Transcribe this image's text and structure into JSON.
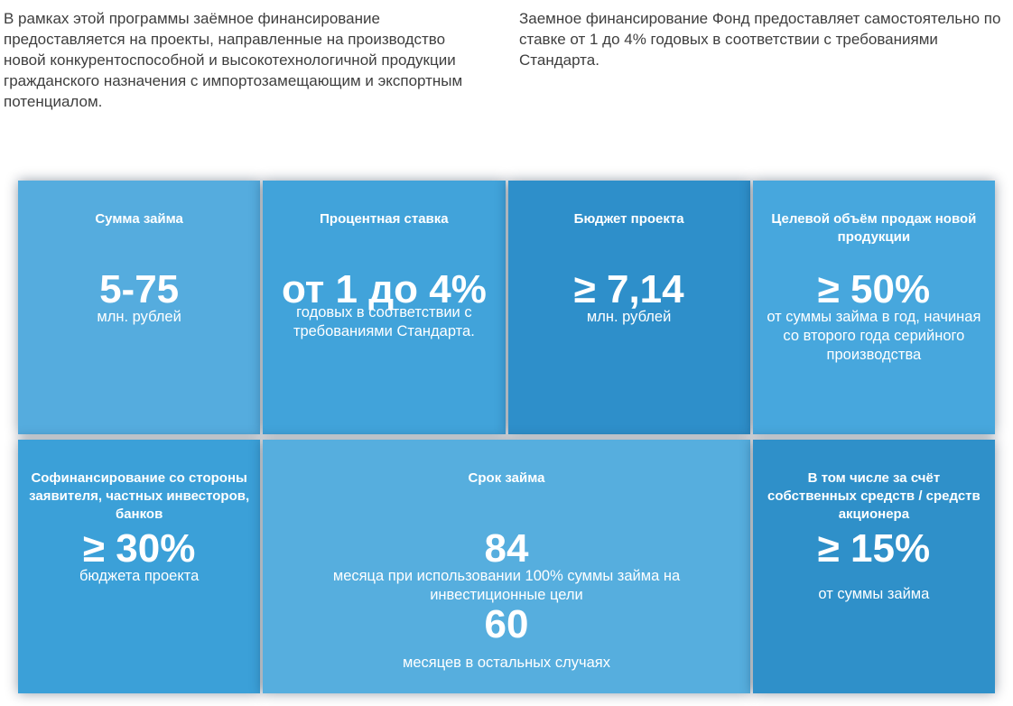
{
  "intro": {
    "left": "В рамках этой программы заёмное финансирование предоставляется на проекты, направленные на производство новой конкурентоспособной и высокотехнологичной продукции гражданского назначения с импортозамещающим и экспортным потенциалом.",
    "right": "Заемное финансирование Фонд предоставляет самостоятельно по ставке от 1 до 4% годовых в соответствии с требованиями Стандарта."
  },
  "tiles": [
    {
      "title": "Сумма займа",
      "value": "5-75",
      "sub": "млн. рублей",
      "color": "#55acde"
    },
    {
      "title": "Процентная ставка",
      "value": "от 1 до 4%",
      "sub": "годовых в соответствии с требованиями Стандарта.",
      "color": "#41a3da"
    },
    {
      "title": "Бюджет проекта",
      "value": "≥ 7,14",
      "sub": "млн. рублей",
      "color": "#2e8fca"
    },
    {
      "title": "Целевой объём продаж новой продукции",
      "value": "≥ 50%",
      "sub": "от суммы займа в год, начиная со второго года серийного производства",
      "color": "#47a7dd"
    },
    {
      "title": "Софинансирование со стороны заявителя, частных инвесторов, банков",
      "value": "≥ 30%",
      "sub": "бюджета проекта",
      "color": "#3ba0d8"
    },
    {
      "title": "Срок займа",
      "color": "#56aede",
      "rows": [
        {
          "value": "84",
          "sub": "месяца при использовании 100% суммы займа на инвестиционные цели"
        },
        {
          "value": "60",
          "sub": "месяцев в остальных случаях"
        }
      ]
    },
    {
      "title": "В том числе за счёт собственных средств / средств акционера",
      "value": "≥ 15%",
      "sub": "от суммы займа",
      "color": "#2f90c9"
    }
  ]
}
